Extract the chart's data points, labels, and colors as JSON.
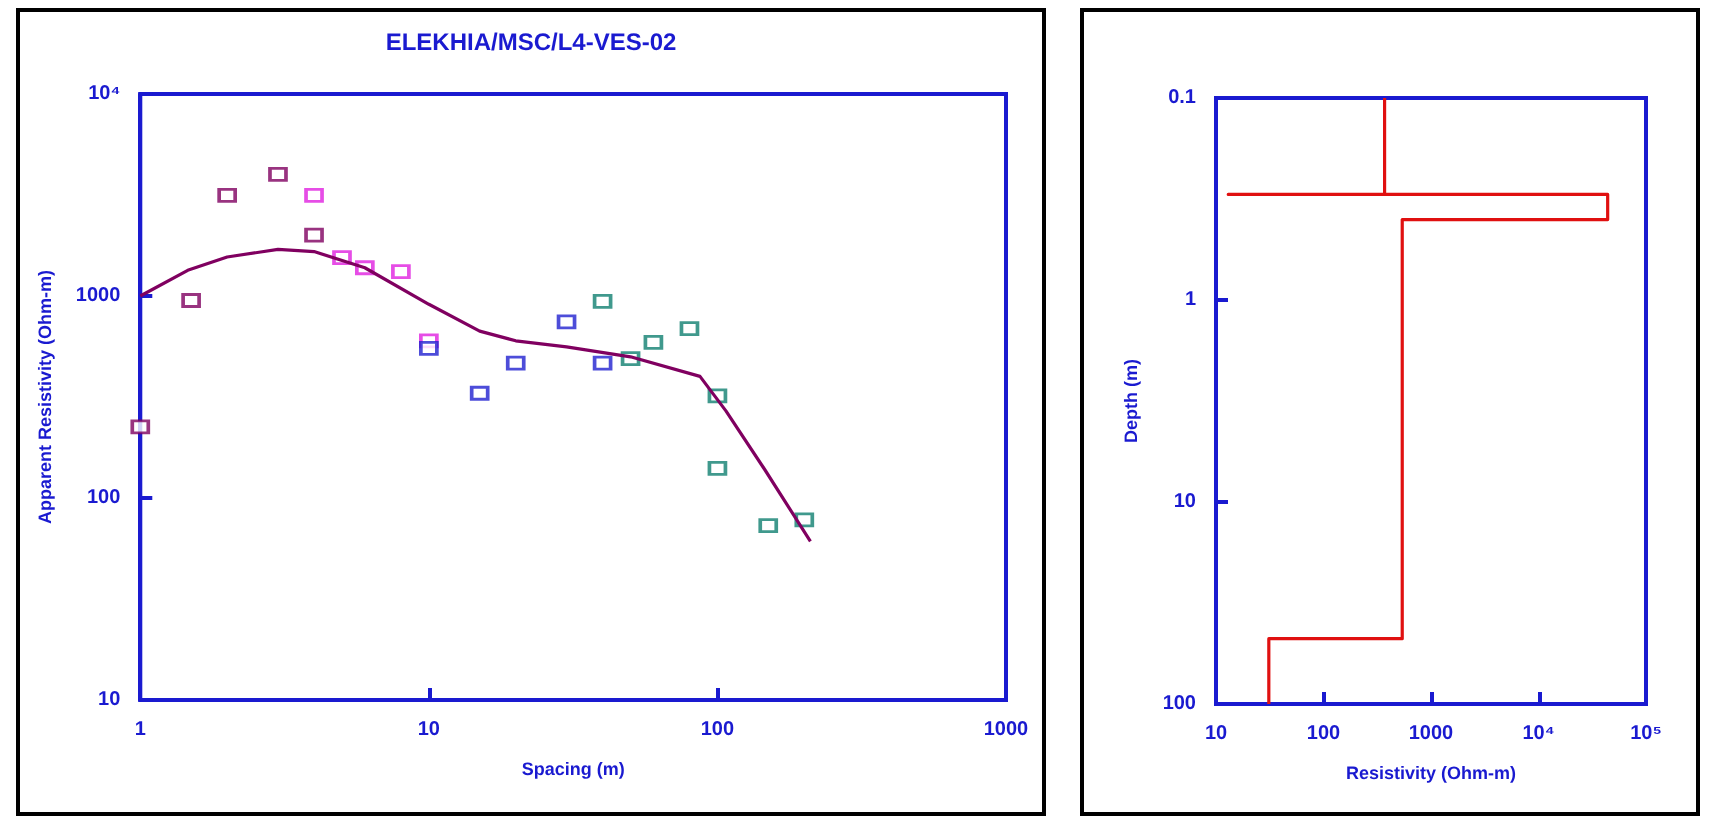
{
  "chart_data": [
    {
      "type": "scatter",
      "title": "ELEKHIA/MSC/L4-VES-02",
      "xlabel": "Spacing (m)",
      "ylabel": "Apparent Resistivity (Ohm-m)",
      "log": "xy",
      "marker": "square",
      "xlim": [
        1,
        1000
      ],
      "ylim": [
        10,
        10000
      ],
      "xticks": [
        1,
        10,
        100,
        1000
      ],
      "yticks": [
        10,
        100,
        1000,
        {
          "value": 10000,
          "label": "10⁴"
        }
      ],
      "series": [
        {
          "color": "#800060",
          "x": [
            1,
            1.5,
            2,
            3,
            4
          ],
          "values": [
            225,
            950,
            3150,
            4000,
            2000
          ]
        },
        {
          "color": "#e020e0",
          "x": [
            4,
            5,
            6,
            8,
            10
          ],
          "values": [
            3150,
            1550,
            1380,
            1320,
            600
          ]
        },
        {
          "color": "#2020d0",
          "x": [
            10,
            15,
            20,
            30,
            40
          ],
          "values": [
            550,
            330,
            465,
            745,
            465
          ]
        },
        {
          "color": "#108070",
          "x": [
            40,
            50,
            60,
            80,
            100,
            100,
            150,
            200
          ],
          "values": [
            940,
            490,
            590,
            690,
            320,
            140,
            73,
            78
          ]
        },
        {
          "type": "line",
          "marker": "none",
          "color": "#800060",
          "x": [
            1,
            1.46,
            2,
            3,
            4,
            6,
            10,
            15,
            20,
            30,
            50,
            87,
            107,
            146,
            210
          ],
          "values": [
            1000,
            1340,
            1560,
            1700,
            1660,
            1380,
            910,
            670,
            600,
            560,
            500,
            400,
            270,
            138,
            61
          ]
        }
      ]
    },
    {
      "type": "line",
      "xlabel": "Resistivity (Ohm-m)",
      "ylabel": "Depth (m)",
      "log": "xy",
      "xlim": [
        10,
        100000
      ],
      "ylim": [
        100,
        0.1
      ],
      "xticks": [
        10,
        100,
        1000,
        {
          "value": 10000,
          "label": "10⁴"
        },
        {
          "value": 100000,
          "label": "10⁵"
        }
      ],
      "yticks": [
        0.1,
        1,
        10,
        100
      ],
      "series": [
        {
          "color": "#e01010",
          "x": [
            370,
            370,
            13,
            44000,
            44000,
            540,
            540,
            31,
            31
          ],
          "values": [
            0.1,
            0.3,
            0.3,
            0.3,
            0.4,
            0.4,
            47.5,
            47.5,
            100
          ]
        }
      ]
    }
  ]
}
